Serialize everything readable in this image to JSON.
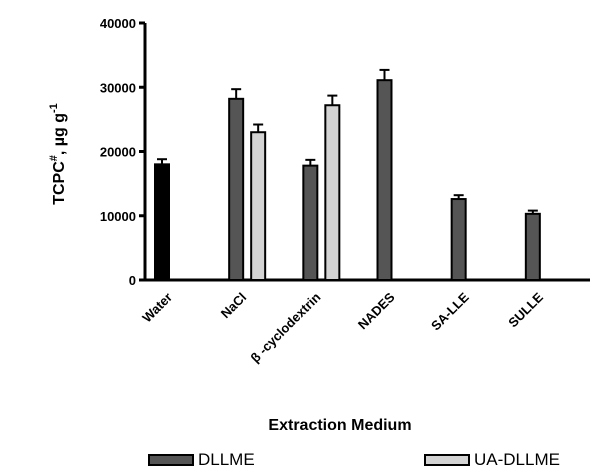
{
  "chart_data": {
    "type": "bar",
    "title": "",
    "xlabel": "Extraction Medium",
    "ylabel_main": "TCPC",
    "ylabel_sup": "#",
    "ylabel_unit": ", µg g",
    "ylabel_unit_sup": "-1",
    "ylim": [
      0,
      40000
    ],
    "yticks": [
      "0",
      "10000",
      "20000",
      "30000",
      "40000"
    ],
    "categories": [
      "Water",
      "NaCl",
      "β  -cyclodextrin",
      "NADES",
      "SA-LLE",
      "SULLE"
    ],
    "series": [
      {
        "name": "DLLME",
        "color": "#555555",
        "values": [
          18000,
          28200,
          17800,
          31100,
          12600,
          10300
        ],
        "errors": [
          800,
          1500,
          900,
          1600,
          600,
          500
        ]
      },
      {
        "name": "UA-DLLME",
        "color": "#d3d3d3",
        "values": [
          null,
          23000,
          27200,
          null,
          null,
          null
        ],
        "errors": [
          null,
          1200,
          1500,
          null,
          null,
          null
        ]
      }
    ],
    "water_color": "#000000",
    "legend_position": "bottom",
    "grid": false
  }
}
